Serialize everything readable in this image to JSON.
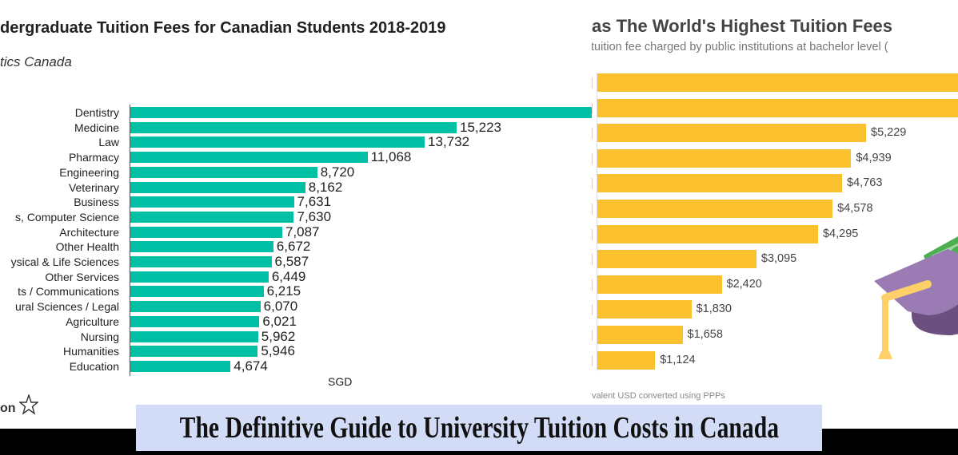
{
  "banner": {
    "title": "The Definitive Guide to University Tuition Costs in Canada"
  },
  "chart_data": [
    {
      "type": "bar",
      "orientation": "horizontal",
      "title": "dergraduate Tuition Fees for Canadian Students 2018-2019",
      "subtitle": "tics Canada",
      "xlabel": "SGD",
      "brand": "on",
      "color": "#00bfa5",
      "categories": [
        "Dentistry",
        "Medicine",
        "Law",
        "Pharmacy",
        "Engineering",
        "Veterinary",
        "Business",
        "s, Computer Science",
        "Architecture",
        "Other Health",
        "ysical & Life Sciences",
        "Other Services",
        "ts / Communications",
        "ural Sciences / Legal",
        "Agriculture",
        "Nursing",
        "Humanities",
        "Education"
      ],
      "values": [
        null,
        15223,
        13732,
        11068,
        8720,
        8162,
        7631,
        7630,
        7087,
        6672,
        6587,
        6449,
        6215,
        6070,
        6021,
        5962,
        5946,
        4674
      ],
      "labels": [
        "",
        "15,223",
        "13,732",
        "11,068",
        "8,720",
        "8,162",
        "7,631",
        "7,630",
        "7,087",
        "6,672",
        "6,587",
        "6,449",
        "6,215",
        "6,070",
        "6,021",
        "5,962",
        "5,946",
        "4,674"
      ]
    },
    {
      "type": "bar",
      "orientation": "horizontal",
      "title": "as The World's Highest Tuition Fees",
      "subtitle": "tuition fee charged by public institutions at bachelor level (",
      "note": "valent USD converted using PPPs",
      "color": "#fbc02d",
      "values": [
        null,
        null,
        5229,
        4939,
        4763,
        4578,
        4295,
        3095,
        2420,
        1830,
        1658,
        1124
      ],
      "labels": [
        "",
        "",
        "$5,229",
        "$4,939",
        "$4,763",
        "$4,578",
        "$4,295",
        "$3,095",
        "$2,420",
        "$1,830",
        "$1,658",
        "$1,124"
      ]
    }
  ]
}
